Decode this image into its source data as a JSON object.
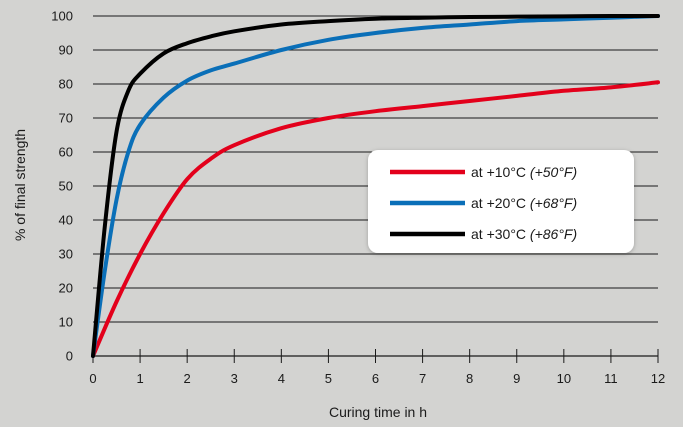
{
  "chart_data": {
    "type": "line",
    "title": "",
    "xlabel": "Curing time in h",
    "ylabel": "% of final strength",
    "xlim": [
      0,
      12
    ],
    "ylim": [
      0,
      100
    ],
    "x_ticks": [
      "0",
      "1",
      "2",
      "3",
      "4",
      "5",
      "6",
      "7",
      "8",
      "9",
      "10",
      "11",
      "12"
    ],
    "y_ticks": [
      "0",
      "10",
      "20",
      "30",
      "40",
      "50",
      "60",
      "70",
      "80",
      "90",
      "100"
    ],
    "grid": "horizontal",
    "legend_position": "right-middle",
    "series": [
      {
        "name": "at +10°C",
        "name_note": "(+50°F)",
        "color": "#e3001b",
        "x": [
          0,
          0.5,
          1,
          1.5,
          2,
          2.5,
          3,
          4,
          5,
          6,
          7,
          8,
          9,
          10,
          11,
          12
        ],
        "y": [
          0,
          16,
          30,
          42,
          52,
          58,
          62,
          67,
          70,
          72,
          73.5,
          75,
          76.5,
          78,
          79,
          80.5
        ]
      },
      {
        "name": "at +20°C",
        "name_note": "(+68°F)",
        "color": "#0a6fb8",
        "x": [
          0,
          0.25,
          0.5,
          0.75,
          1,
          1.5,
          2,
          2.5,
          3,
          4,
          5,
          6,
          7,
          8,
          9,
          10,
          11,
          12
        ],
        "y": [
          0,
          25,
          46,
          60,
          68,
          76,
          81,
          84,
          86,
          90,
          93,
          95,
          96.5,
          97.5,
          98.5,
          99,
          99.5,
          100
        ]
      },
      {
        "name": "at +30°C",
        "name_note": "(+86°F)",
        "color": "#000000",
        "x": [
          0,
          0.25,
          0.5,
          0.75,
          1,
          1.5,
          2,
          2.5,
          3,
          4,
          5,
          6,
          7,
          8,
          9,
          10,
          11,
          12
        ],
        "y": [
          0,
          38,
          66,
          78,
          83,
          89,
          92,
          94,
          95.5,
          97.5,
          98.5,
          99.2,
          99.5,
          99.7,
          99.8,
          99.9,
          100,
          100
        ]
      }
    ]
  }
}
